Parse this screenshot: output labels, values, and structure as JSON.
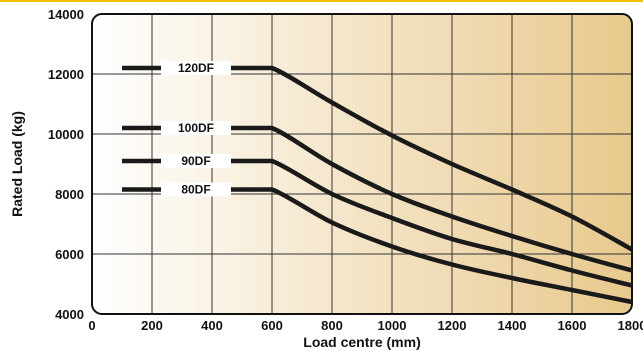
{
  "chart_data": {
    "type": "line",
    "title": "",
    "xlabel": "Load centre (mm)",
    "ylabel": "Rated Load (kg)",
    "xlim": [
      0,
      1800
    ],
    "ylim": [
      4000,
      14000
    ],
    "x_ticks": [
      "0",
      "200",
      "400",
      "600",
      "800",
      "1000",
      "1200",
      "1400",
      "1600",
      "1800"
    ],
    "y_ticks": [
      "4000",
      "6000",
      "8000",
      "10000",
      "12000",
      "14000"
    ],
    "grid": true,
    "legend": "inline labels",
    "series": [
      {
        "name": "120DF",
        "x": [
          100,
          200,
          300,
          400,
          500,
          600,
          800,
          1000,
          1200,
          1400,
          1600,
          1800
        ],
        "y": [
          12200,
          12200,
          12200,
          12200,
          12200,
          12200,
          11050,
          9950,
          9000,
          8150,
          7250,
          6150
        ]
      },
      {
        "name": "100DF",
        "x": [
          100,
          200,
          300,
          400,
          500,
          600,
          800,
          1000,
          1200,
          1400,
          1600,
          1800
        ],
        "y": [
          10200,
          10200,
          10200,
          10200,
          10200,
          10200,
          9000,
          8000,
          7250,
          6600,
          6000,
          5450
        ]
      },
      {
        "name": "90DF",
        "x": [
          100,
          200,
          300,
          400,
          500,
          600,
          800,
          1000,
          1200,
          1400,
          1600,
          1800
        ],
        "y": [
          9100,
          9100,
          9100,
          9100,
          9100,
          9100,
          8000,
          7200,
          6500,
          6000,
          5450,
          4950
        ]
      },
      {
        "name": "80DF",
        "x": [
          100,
          200,
          300,
          400,
          500,
          600,
          800,
          1000,
          1200,
          1400,
          1600,
          1800
        ],
        "y": [
          8150,
          8150,
          8150,
          8150,
          8150,
          8150,
          7050,
          6250,
          5650,
          5200,
          4800,
          4400
        ]
      }
    ],
    "colors": {
      "line": "#1a1a1a",
      "grid": "#333333",
      "gradient_start": "#ffffff",
      "gradient_end": "#e8c98d",
      "top_rule": "#f2c200"
    }
  }
}
